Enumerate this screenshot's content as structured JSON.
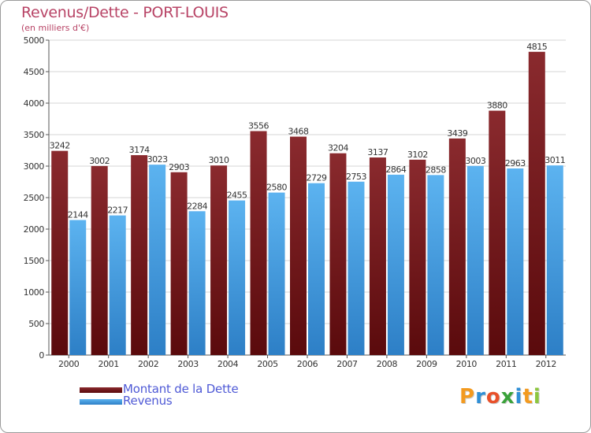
{
  "header": {
    "title": "Revenus/Dette - PORT-LOUIS",
    "subtitle": "(en milliers d'€)"
  },
  "chart_data": {
    "type": "bar",
    "title": "Revenus/Dette - PORT-LOUIS",
    "subtitle": "(en milliers d'€)",
    "xlabel": "",
    "ylabel": "",
    "ylim": [
      0,
      5000
    ],
    "yticks": [
      0,
      500,
      1000,
      1500,
      2000,
      2500,
      3000,
      3500,
      4000,
      4500,
      5000
    ],
    "grid": true,
    "legend_position": "bottom-left",
    "categories": [
      "2000",
      "2001",
      "2002",
      "2003",
      "2004",
      "2005",
      "2006",
      "2007",
      "2008",
      "2009",
      "2010",
      "2011",
      "2012"
    ],
    "series": [
      {
        "name": "Montant de la Dette",
        "color": "#7b2226",
        "values": [
          3242,
          3002,
          3174,
          2903,
          3010,
          3556,
          3468,
          3204,
          3137,
          3102,
          3439,
          3880,
          4815
        ]
      },
      {
        "name": "Revenus",
        "color": "#4ba3e3",
        "values": [
          2144,
          2217,
          3023,
          2284,
          2455,
          2580,
          2729,
          2753,
          2864,
          2858,
          3003,
          2963,
          3011
        ]
      }
    ]
  },
  "legend": {
    "items": [
      {
        "label": "Montant de la Dette",
        "color": "#7b2226"
      },
      {
        "label": "Revenus",
        "color": "#4ba3e3"
      }
    ]
  },
  "logo": {
    "letters": [
      "P",
      "r",
      "o",
      "x",
      "i",
      "t",
      "i"
    ],
    "colors": [
      "#f39a1f",
      "#2f8fd6",
      "#e8502a",
      "#3aa23a",
      "#2f8fd6",
      "#f39a1f",
      "#8cc63f"
    ]
  }
}
